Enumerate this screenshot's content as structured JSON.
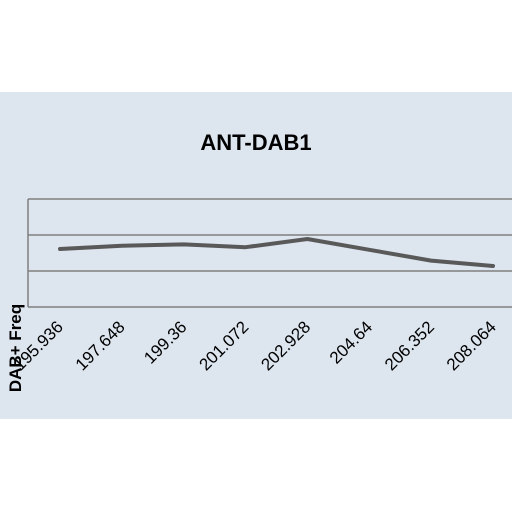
{
  "chart_data": {
    "type": "line",
    "title": "ANT-DAB1",
    "xlabel": "",
    "ylabel": "DAB+ Freq",
    "categories": [
      "195.936",
      "197.648",
      "199.36",
      "201.072",
      "202.928",
      "204.64",
      "206.352",
      "208.064"
    ],
    "series": [
      {
        "values": [
          0.61,
          0.7,
          0.74,
          0.66,
          0.89,
          0.59,
          0.29,
          0.14
        ]
      }
    ],
    "ylim": [
      -1,
      2
    ],
    "y_ticks_shown": false,
    "grid": "horizontal",
    "legend": "none",
    "colors": {
      "background": "#dde5ef",
      "line": "#595959",
      "grid": "#7f7f7f"
    }
  }
}
